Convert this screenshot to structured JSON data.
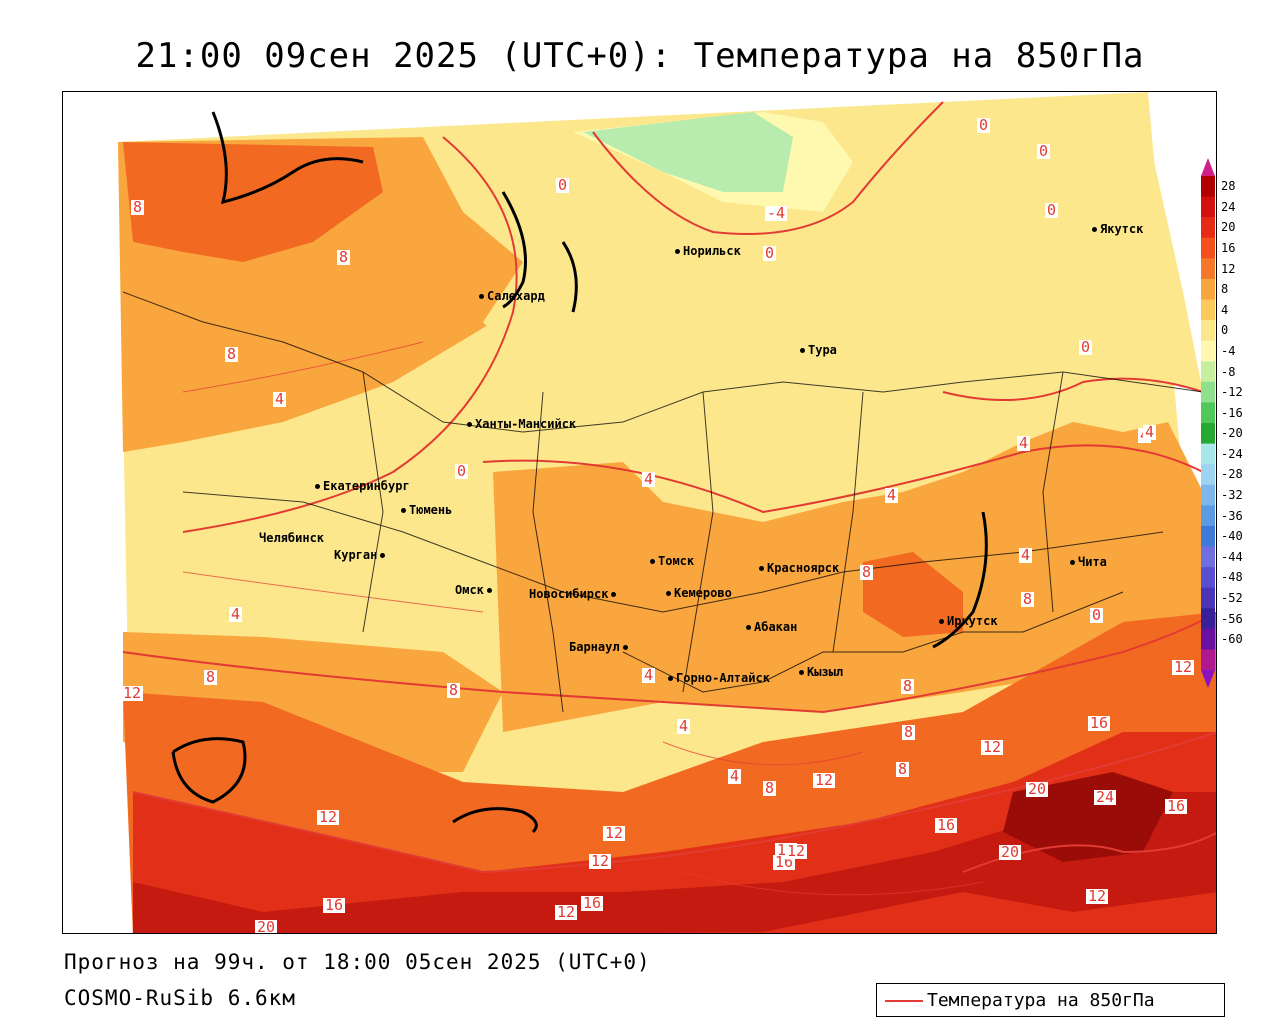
{
  "title": "21:00 09сен 2025 (UTC+0): Температура на 850гПа",
  "forecast_line": "Прогноз на 99ч. от 18:00 05сен 2025 (UTC+0)",
  "model_line": "COSMO-RuSib 6.6км",
  "legend": {
    "label": "Температура на 850гПа",
    "line_color": "#e23b33"
  },
  "colors": {
    "contour": "#e23b33",
    "warm_levels": [
      "#fce78c",
      "#fcc95c",
      "#f9a63e",
      "#f26a22",
      "#e23018",
      "#c41a10",
      "#9a0c08"
    ],
    "cold_levels": [
      "#fff9b0",
      "#d9f2a8",
      "#a8e8a0",
      "#5fcf6a"
    ]
  },
  "cities": [
    {
      "name": "Норильск"
    },
    {
      "name": "Якутск"
    },
    {
      "name": "Салехард"
    },
    {
      "name": "Тура"
    },
    {
      "name": "Ханты-Мансийск"
    },
    {
      "name": "Екатеринбург"
    },
    {
      "name": "Тюмень"
    },
    {
      "name": "Челябинск"
    },
    {
      "name": "Курган"
    },
    {
      "name": "Омск"
    },
    {
      "name": "Новосибирск"
    },
    {
      "name": "Томск"
    },
    {
      "name": "Кемерово"
    },
    {
      "name": "Барнаул"
    },
    {
      "name": "Красноярск"
    },
    {
      "name": "Абакан"
    },
    {
      "name": "Горно-Алтайск"
    },
    {
      "name": "Кызыл"
    },
    {
      "name": "Иркутск"
    },
    {
      "name": "Чита"
    }
  ],
  "contour_labels": [
    "0",
    "0",
    "0",
    "0",
    "0",
    "0",
    "-4",
    "0",
    "8",
    "8",
    "8",
    "4",
    "4",
    "4",
    "4",
    "4",
    "4",
    "4",
    "4",
    "4",
    "4",
    "8",
    "8",
    "8",
    "8",
    "8",
    "8",
    "8",
    "8",
    "12",
    "12",
    "12",
    "12",
    "12",
    "12",
    "12",
    "12",
    "12",
    "12",
    "16",
    "16",
    "16",
    "16",
    "16",
    "16",
    "20",
    "20",
    "20",
    "24",
    "12",
    "4",
    "0"
  ],
  "colorbar": {
    "ticks": [
      "28",
      "24",
      "20",
      "16",
      "12",
      "8",
      "4",
      "0",
      "-4",
      "-8",
      "-12",
      "-16",
      "-20",
      "-24",
      "-28",
      "-32",
      "-36",
      "-40",
      "-44",
      "-48",
      "-52",
      "-56",
      "-60"
    ],
    "colors": [
      "#b00000",
      "#d21010",
      "#e62a16",
      "#f2501c",
      "#f5782a",
      "#f9a63e",
      "#fcc95c",
      "#fce78c",
      "#fff9b0",
      "#c8efa0",
      "#8fe08e",
      "#4fc95a",
      "#26a833",
      "#a8e6ea",
      "#9fd4f0",
      "#7cb8ec",
      "#5d9ae4",
      "#3f7ad8",
      "#6f6fe0",
      "#5a4fd0",
      "#4a35b8",
      "#3a2098",
      "#6a10a0",
      "#b01890"
    ]
  }
}
